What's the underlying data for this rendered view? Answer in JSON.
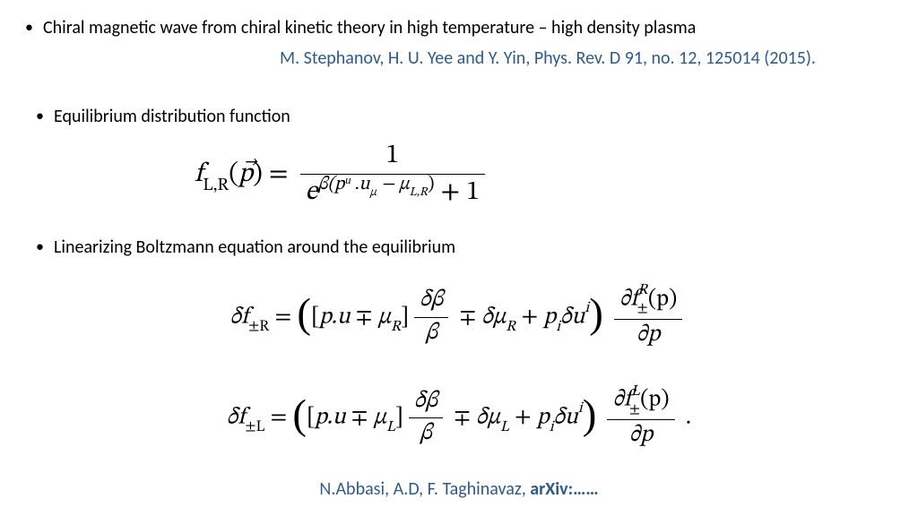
{
  "colors": {
    "citation": "#2e5b8c",
    "body_text": "#000000",
    "background": "#ffffff"
  },
  "typography": {
    "body_font": "Calibri",
    "math_font": "Cambria Math",
    "body_size_pt": 20,
    "eq1_size_pt": 30,
    "eq2_size_pt": 26
  },
  "bullets": {
    "b1": "Chiral magnetic wave from chiral kinetic theory in high temperature – high density plasma",
    "b2": "Equilibrium distribution function",
    "b3": "Linearizing Boltzmann equation around the equilibrium"
  },
  "citations": {
    "top": "M. Stephanov, H. U. Yee and Y. Yin, Phys. Rev. D 91, no. 12, 125014 (2015).",
    "bottom_authors": "N.Abbasi, A.D, F. Taghinavaz, ",
    "bottom_ref": "arXiv:……"
  },
  "eq1": {
    "lhs_f": "f",
    "lhs_sub": "L,R",
    "lhs_arg_open": "(",
    "lhs_arg": "p⃗",
    "lhs_arg_close": ") = ",
    "num": "1",
    "den_e": "e",
    "den_exp": "β(pᵘ .u",
    "den_exp_sub": "μ",
    "den_exp2": " − μ",
    "den_exp2_sub": "L,R",
    "den_exp_close": ")",
    "den_tail": " + 1"
  },
  "eq2": {
    "rowR": {
      "lhs": "δf",
      "lhs_sub": "±R",
      "eq": " = ",
      "open": "(",
      "br_open": "[",
      "pu": "p.u",
      "mp1": " ∓ ",
      "mu": "μ",
      "mu_sub": "R",
      "br_close": "]",
      "frac1_num": "δβ",
      "frac1_den": "β",
      "mp2": " ∓ ",
      "dmu": "δμ",
      "dmu_sub": "R",
      "plus": " + ",
      "pi": "p",
      "pi_sub": "i",
      "du": "δu",
      "du_sup": "i",
      "close": ")",
      "frac2_num_d": "∂f",
      "frac2_num_sup": "R",
      "frac2_num_sub": "±",
      "frac2_num_arg": "(p)",
      "frac2_den": "∂p"
    },
    "rowL": {
      "lhs": "δf",
      "lhs_sub": "±L",
      "eq": " = ",
      "open": "(",
      "br_open": "[",
      "pu": "p.u",
      "mp1": " ∓ ",
      "mu": "μ",
      "mu_sub": "L",
      "br_close": "]",
      "frac1_num": "δβ",
      "frac1_den": "β",
      "mp2": " ∓ ",
      "dmu": "δμ",
      "dmu_sub": "L",
      "plus": " + ",
      "pi": "p",
      "pi_sub": "i",
      "du": "δu",
      "du_sup": "i",
      "close": ")",
      "frac2_num_d": "∂f",
      "frac2_num_sup": "L",
      "frac2_num_sub": "±",
      "frac2_num_arg": "(p)",
      "frac2_den": "∂p",
      "period": " ."
    }
  }
}
